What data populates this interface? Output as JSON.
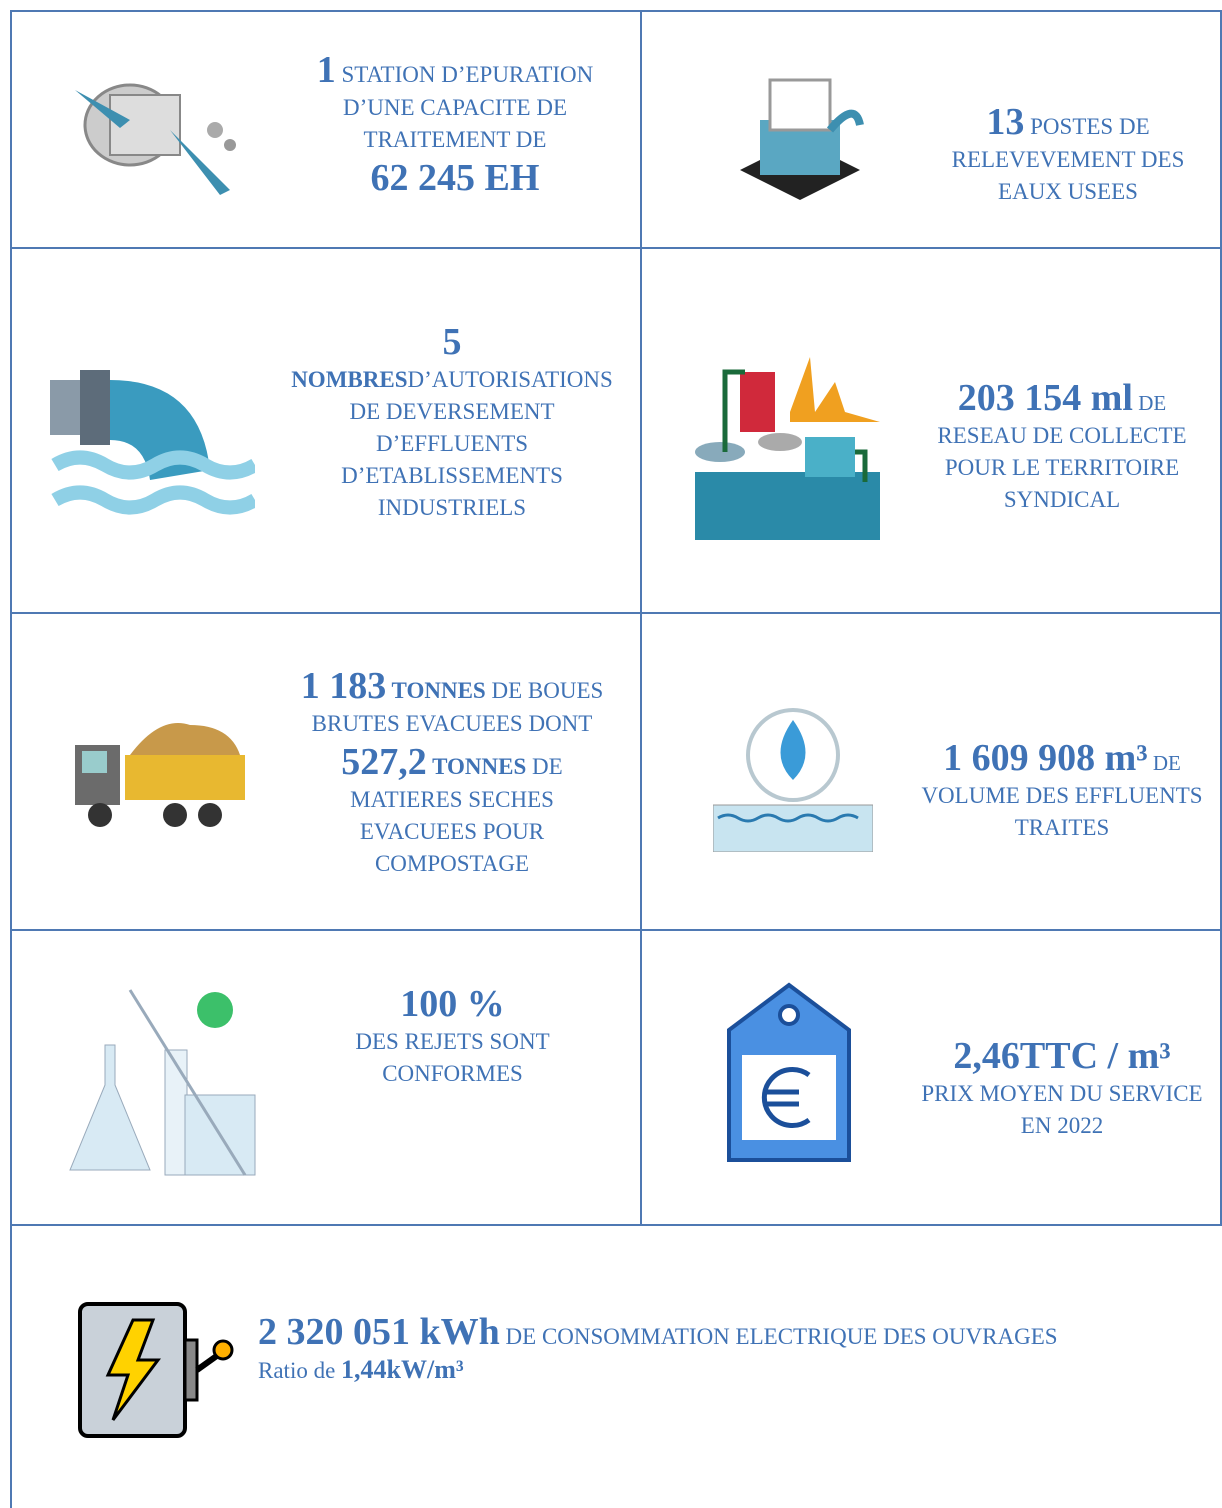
{
  "cells": [
    {
      "lines": [
        [
          "1",
          " STATION D’EPURATION"
        ],
        [
          "D’UNE CAPACITE DE"
        ],
        [
          "TRAITEMENT DE"
        ],
        [
          "62 245 EH"
        ]
      ]
    },
    {
      "lines": [
        [
          "13",
          " POSTES DE"
        ],
        [
          "RELEVEVEMENT DES"
        ],
        [
          "EAUX USEES"
        ]
      ]
    },
    {
      "lines": [
        [
          "5"
        ],
        [
          "NOMBRES",
          "D’AUTORISATIONS"
        ],
        [
          "DE DEVERSEMENT"
        ],
        [
          "D’EFFLUENTS"
        ],
        [
          "D’ETABLISSEMENTS"
        ],
        [
          "INDUSTRIELS"
        ]
      ]
    },
    {
      "lines": [
        [
          "203 154 ml",
          " DE"
        ],
        [
          "RESEAU DE COLLECTE"
        ],
        [
          "POUR LE TERRITOIRE"
        ],
        [
          "SYNDICAL"
        ]
      ]
    },
    {
      "lines": [
        [
          "1 183",
          " TONNES",
          " DE BOUES"
        ],
        [
          "BRUTES EVACUEES DONT"
        ],
        [
          "527,2",
          " TONNES",
          " DE"
        ],
        [
          "MATIERES SECHES"
        ],
        [
          "EVACUEES POUR"
        ],
        [
          "COMPOSTAGE"
        ]
      ]
    },
    {
      "lines": [
        [
          "1 609 908 m³",
          " DE"
        ],
        [
          "VOLUME DES EFFLUENTS"
        ],
        [
          "TRAITES"
        ]
      ]
    },
    {
      "lines": [
        [
          "100 %"
        ],
        [
          "DES REJETS SONT"
        ],
        [
          "CONFORMES"
        ]
      ]
    },
    {
      "lines": [
        [
          "2,46TTC / m³"
        ],
        [
          "PRIX MOYEN DU SERVICE"
        ],
        [
          "EN 2022"
        ]
      ]
    },
    {
      "lines": [
        [
          "2 320 051 kWh",
          " DE CONSOMMATION ELECTRIQUE DES OUVRAGES"
        ],
        [
          "Ratio de ",
          "1,44kW/m³"
        ]
      ]
    }
  ]
}
